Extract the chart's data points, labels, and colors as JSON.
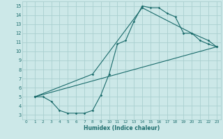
{
  "xlabel": "Humidex (Indice chaleur)",
  "bg_color": "#cce8e8",
  "grid_color": "#aacfcf",
  "line_color": "#1a6b6b",
  "xlim": [
    -0.5,
    23.5
  ],
  "ylim": [
    2.5,
    15.5
  ],
  "xticks": [
    0,
    1,
    2,
    3,
    4,
    5,
    6,
    7,
    8,
    9,
    10,
    11,
    12,
    13,
    14,
    15,
    16,
    17,
    18,
    19,
    20,
    21,
    22,
    23
  ],
  "yticks": [
    3,
    4,
    5,
    6,
    7,
    8,
    9,
    10,
    11,
    12,
    13,
    14,
    15
  ],
  "line1_x": [
    1,
    2,
    3,
    4,
    5,
    6,
    7,
    8,
    9,
    10,
    11,
    12,
    13,
    14,
    15,
    16,
    17,
    18,
    19,
    20,
    21,
    22,
    23
  ],
  "line1_y": [
    5,
    5,
    4.5,
    3.5,
    3.2,
    3.2,
    3.2,
    3.5,
    5.2,
    7.5,
    10.8,
    11.2,
    13.3,
    15.0,
    14.8,
    14.8,
    14.2,
    13.8,
    12.0,
    12.0,
    11.2,
    10.8,
    10.5
  ],
  "line2_x": [
    1,
    8,
    14,
    20,
    22,
    23
  ],
  "line2_y": [
    5,
    7.5,
    14.8,
    12.0,
    11.2,
    10.5
  ],
  "line3_x": [
    1,
    23
  ],
  "line3_y": [
    5,
    10.5
  ]
}
